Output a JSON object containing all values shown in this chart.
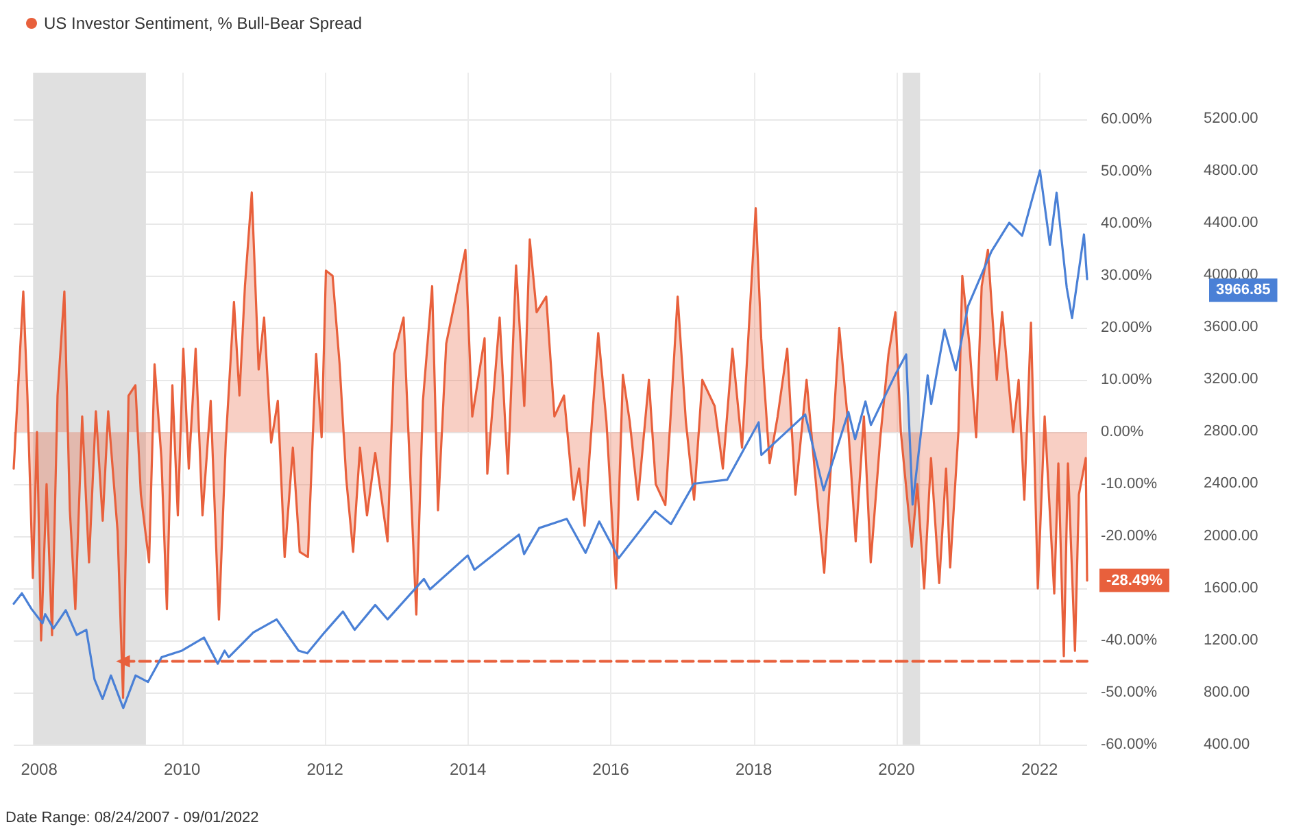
{
  "chart_data": {
    "type": "area",
    "legend": "top left",
    "grid": true,
    "tick_labels": true,
    "xlim": [
      "2007-08-24",
      "2022-09-01"
    ],
    "xticks": [
      "2008",
      "2010",
      "2012",
      "2014",
      "2016",
      "2018",
      "2020",
      "2022"
    ],
    "ylim": [
      -60,
      69
    ],
    "yticks": [
      {
        "value": -60,
        "label": "-60.00%"
      },
      {
        "value": -50,
        "label": "-50.00%"
      },
      {
        "value": -40,
        "label": "-40.00%"
      },
      {
        "value": -30,
        "label": null
      },
      {
        "value": -20,
        "label": "-20.00%"
      },
      {
        "value": -10,
        "label": "-10.00%"
      },
      {
        "value": 0,
        "label": "0.00%"
      },
      {
        "value": 10,
        "label": "10.00%"
      },
      {
        "value": 20,
        "label": "20.00%"
      },
      {
        "value": 30,
        "label": "30.00%"
      },
      {
        "value": 40,
        "label": "40.00%"
      },
      {
        "value": 50,
        "label": "50.00%"
      },
      {
        "value": 60,
        "label": "60.00%"
      }
    ],
    "y2lim": [
      400,
      5550
    ],
    "y2ticks": [
      {
        "value": 400,
        "label": "400.00"
      },
      {
        "value": 800,
        "label": "800.00"
      },
      {
        "value": 1200,
        "label": "1200.00"
      },
      {
        "value": 1600,
        "label": "1600.00"
      },
      {
        "value": 2000,
        "label": "2000.00"
      },
      {
        "value": 2400,
        "label": "2400.00"
      },
      {
        "value": 2800,
        "label": "2800.00"
      },
      {
        "value": 3200,
        "label": "3200.00"
      },
      {
        "value": 3600,
        "label": "3600.00"
      },
      {
        "value": 4000,
        "label": "4000.00"
      },
      {
        "value": 4400,
        "label": "4400.00"
      },
      {
        "value": 4800,
        "label": "4800.00"
      },
      {
        "value": 5200,
        "label": "5200.00"
      }
    ],
    "bands": [
      {
        "axis": "x",
        "from": "2007-12-01",
        "to": "2009-06-30",
        "color": "#e0e0e0"
      },
      {
        "axis": "x",
        "from": "2020-02-01",
        "to": "2020-04-30",
        "color": "#e0e0e0"
      }
    ],
    "annotations": [
      "-28.49%",
      "3966.85",
      "Date Range: 08/24/2007 - 09/01/2022"
    ],
    "series": [
      {
        "name": "US Investor Sentiment, % Bull-Bear Spread",
        "color": "#e8603c",
        "x": [
          "2007-08-24",
          "2007-10-12",
          "2007-11-02",
          "2007-11-30",
          "2007-12-21",
          "2008-01-11",
          "2008-02-08",
          "2008-03-07",
          "2008-04-04",
          "2008-05-09",
          "2008-06-06",
          "2008-07-04",
          "2008-08-08",
          "2008-09-12",
          "2008-10-17",
          "2008-11-21",
          "2008-12-19",
          "2009-02-05",
          "2009-03-05",
          "2009-04-02",
          "2009-05-07",
          "2009-06-04",
          "2009-07-16",
          "2009-08-13",
          "2009-09-17",
          "2009-10-15",
          "2009-11-12",
          "2009-12-10",
          "2010-01-07",
          "2010-02-04",
          "2010-03-11",
          "2010-04-15",
          "2010-05-27",
          "2010-07-08",
          "2010-08-12",
          "2010-09-23",
          "2010-10-21",
          "2010-11-18",
          "2010-12-23",
          "2011-01-27",
          "2011-02-24",
          "2011-04-01",
          "2011-05-05",
          "2011-06-09",
          "2011-07-21",
          "2011-08-25",
          "2011-10-06",
          "2011-11-17",
          "2011-12-15",
          "2012-01-06",
          "2012-02-09",
          "2012-03-16",
          "2012-04-19",
          "2012-05-24",
          "2012-06-28",
          "2012-08-03",
          "2012-09-14",
          "2012-11-16",
          "2012-12-20",
          "2013-02-06",
          "2013-03-07",
          "2013-04-12",
          "2013-05-16",
          "2013-07-02",
          "2013-08-01",
          "2013-09-12",
          "2013-12-19",
          "2014-01-23",
          "2014-03-27",
          "2014-04-10",
          "2014-06-12",
          "2014-07-24",
          "2014-09-04",
          "2014-10-16",
          "2014-11-13",
          "2014-12-18",
          "2015-02-05",
          "2015-03-19",
          "2015-05-07",
          "2015-06-25",
          "2015-07-23",
          "2015-08-20",
          "2015-10-29",
          "2015-12-10",
          "2016-01-28",
          "2016-03-03",
          "2016-04-07",
          "2016-05-19",
          "2016-07-14",
          "2016-08-18",
          "2016-10-06",
          "2016-12-08",
          "2017-01-19",
          "2017-03-02",
          "2017-04-13",
          "2017-06-15",
          "2017-07-27",
          "2017-09-14",
          "2017-11-02",
          "2018-01-11",
          "2018-02-08",
          "2018-03-23",
          "2018-05-03",
          "2018-06-21",
          "2018-08-02",
          "2018-09-28",
          "2018-11-08",
          "2018-12-27",
          "2019-02-07",
          "2019-03-14",
          "2019-04-25",
          "2019-06-06",
          "2019-07-18",
          "2019-08-22",
          "2019-10-10",
          "2019-11-21",
          "2019-12-26",
          "2020-01-23",
          "2020-03-19",
          "2020-04-16",
          "2020-05-21",
          "2020-06-25",
          "2020-08-06",
          "2020-09-10",
          "2020-10-01",
          "2020-11-12",
          "2020-12-02",
          "2021-01-07",
          "2021-02-11",
          "2021-03-11",
          "2021-04-12",
          "2021-05-27",
          "2021-06-24",
          "2021-08-19",
          "2021-09-16",
          "2021-10-15",
          "2021-11-18",
          "2021-12-23",
          "2022-01-27",
          "2022-03-17",
          "2022-04-07",
          "2022-05-05",
          "2022-05-26",
          "2022-07-01",
          "2022-07-21",
          "2022-08-25",
          "2022-09-01"
        ],
        "values": [
          -7,
          27,
          7,
          -28,
          0,
          -40,
          -10,
          -39,
          7,
          27,
          -15,
          -34,
          3,
          -25,
          4,
          -17,
          4,
          -19,
          -51,
          7,
          9,
          -12,
          -25,
          13,
          -5,
          -34,
          9,
          -16,
          16,
          -7,
          16,
          -16,
          6,
          -36,
          -2,
          25,
          7,
          28,
          46,
          12,
          22,
          -2,
          6,
          -24,
          -3,
          -23,
          -24,
          15,
          -1,
          31,
          30,
          13,
          -9,
          -23,
          -3,
          -16,
          -4,
          -21,
          15,
          22,
          -4,
          -35,
          6,
          28,
          -15,
          17,
          35,
          3,
          18,
          -8,
          22,
          -8,
          32,
          5,
          37,
          23,
          26,
          3,
          7,
          -13,
          -7,
          -18,
          19,
          2,
          -30,
          11,
          2,
          -13,
          10,
          -10,
          -14,
          26,
          2,
          -13,
          10,
          5,
          -7,
          16,
          -3,
          43,
          18,
          -6,
          3,
          16,
          -12,
          10,
          -7,
          -27,
          -2,
          20,
          3,
          -21,
          3,
          -25,
          -1,
          15,
          23,
          0,
          -22,
          -10,
          -30,
          -5,
          -29,
          -7,
          -26,
          0,
          30,
          17,
          -1,
          28,
          35,
          10,
          23,
          0,
          10,
          -13,
          21,
          -30,
          3,
          -31,
          -6,
          -43,
          -6,
          -42,
          -12,
          -5,
          -28.49
        ]
      },
      {
        "type": "line",
        "axis": "y2",
        "color": "#4a80d6",
        "x": [
          "2007-08-24",
          "2007-10-05",
          "2007-11-23",
          "2008-01-18",
          "2008-02-01",
          "2008-03-14",
          "2008-05-16",
          "2008-07-11",
          "2008-08-29",
          "2008-10-10",
          "2008-11-20",
          "2009-01-02",
          "2009-03-06",
          "2009-05-08",
          "2009-07-10",
          "2009-09-18",
          "2009-12-31",
          "2010-04-23",
          "2010-07-02",
          "2010-08-06",
          "2010-08-27",
          "2010-12-31",
          "2011-04-29",
          "2011-08-19",
          "2011-10-03",
          "2011-12-30",
          "2012-04-02",
          "2012-06-01",
          "2012-09-14",
          "2012-11-16",
          "2013-05-21",
          "2013-06-21",
          "2013-12-31",
          "2014-02-03",
          "2014-09-19",
          "2014-10-15",
          "2014-12-31",
          "2015-05-21",
          "2015-08-25",
          "2015-11-03",
          "2016-02-11",
          "2016-08-15",
          "2016-11-04",
          "2017-03-01",
          "2017-08-18",
          "2018-01-26",
          "2018-02-09",
          "2018-09-21",
          "2018-12-24",
          "2019-04-30",
          "2019-06-03",
          "2019-07-26",
          "2019-08-23",
          "2019-12-27",
          "2020-02-19",
          "2020-03-23",
          "2020-06-08",
          "2020-06-26",
          "2020-09-02",
          "2020-10-30",
          "2020-12-31",
          "2021-04-30",
          "2021-07-30",
          "2021-10-04",
          "2022-01-03",
          "2022-02-23",
          "2022-03-29",
          "2022-05-20",
          "2022-06-16",
          "2022-08-16",
          "2022-09-01"
        ],
        "values": [
          1480,
          1560,
          1440,
          1330,
          1400,
          1290,
          1430,
          1240,
          1280,
          900,
          750,
          930,
          680,
          930,
          880,
          1070,
          1120,
          1220,
          1020,
          1120,
          1070,
          1260,
          1360,
          1120,
          1100,
          1260,
          1420,
          1280,
          1470,
          1360,
          1670,
          1590,
          1850,
          1740,
          2010,
          1860,
          2060,
          2130,
          1870,
          2110,
          1830,
          2190,
          2090,
          2400,
          2430,
          2870,
          2620,
          2930,
          2350,
          2950,
          2740,
          3030,
          2850,
          3240,
          3390,
          2240,
          3230,
          3010,
          3580,
          3270,
          3760,
          4180,
          4400,
          4300,
          4800,
          4230,
          4630,
          3900,
          3670,
          4310,
          3966.85
        ]
      },
      {
        "type": "line",
        "line_style": "dashed",
        "color": "#e8603c",
        "x": [
          "2009-03-05",
          "2022-09-01"
        ],
        "values": [
          -44,
          -44
        ]
      }
    ]
  }
}
